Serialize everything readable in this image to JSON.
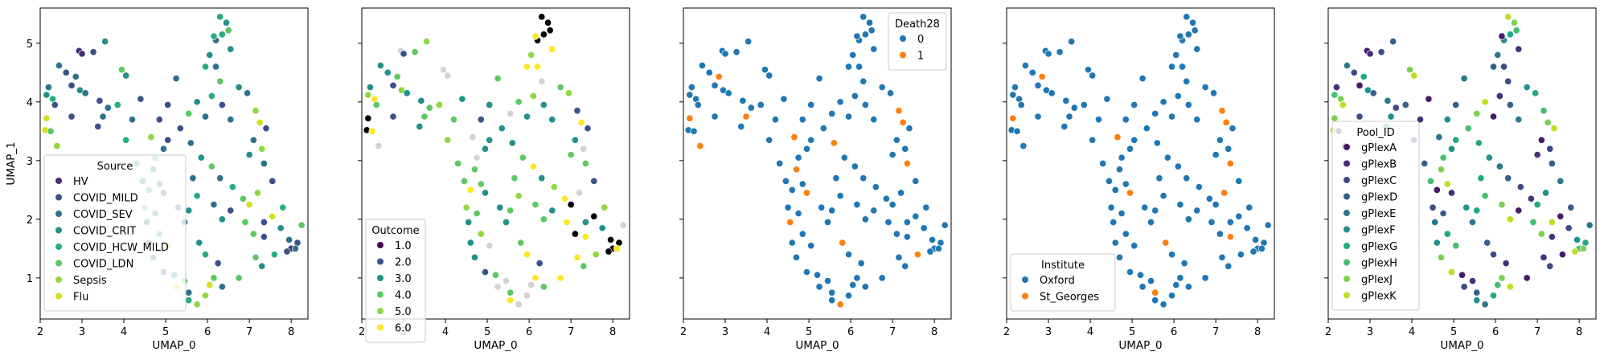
{
  "chart_data": [
    {
      "type": "scatter",
      "xlabel": "UMAP_0",
      "ylabel": "UMAP_1",
      "xlim": [
        2.0,
        8.4
      ],
      "ylim": [
        0.3,
        5.6
      ],
      "xticks": [
        "2",
        "3",
        "4",
        "5",
        "6",
        "7",
        "8"
      ],
      "yticks": [
        "1",
        "2",
        "3",
        "4",
        "5"
      ],
      "legend": {
        "title": "Source",
        "position": "lower-left",
        "entries": [
          "HV",
          "COVID_MILD",
          "COVID_SEV",
          "COVID_CRIT",
          "COVID_HCW_MILD",
          "COVID_LDN",
          "Sepsis",
          "Flu"
        ]
      },
      "colors": [
        "#472c7a",
        "#3b518b",
        "#2c718e",
        "#21908d",
        "#27ad81",
        "#5cc863",
        "#8fd744",
        "#d4e11a"
      ]
    },
    {
      "type": "scatter",
      "xlabel": "UMAP_0",
      "ylabel": "",
      "xlim": [
        2.0,
        8.4
      ],
      "ylim": [
        0.3,
        5.6
      ],
      "xticks": [
        "2",
        "3",
        "4",
        "5",
        "6",
        "7",
        "8"
      ],
      "yticks": [],
      "legend": {
        "title": "Outcome",
        "position": "lower-left",
        "entries": [
          "1.0",
          "2.0",
          "3.0",
          "4.0",
          "5.0",
          "6.0"
        ]
      },
      "colors": [
        "#440154",
        "#3b528b",
        "#21918c",
        "#5ec962",
        "#8fd744",
        "#fde725"
      ],
      "missing_color": "#d3d3d3"
    },
    {
      "type": "scatter",
      "xlabel": "UMAP_0",
      "ylabel": "",
      "xlim": [
        2.0,
        8.4
      ],
      "ylim": [
        0.3,
        5.6
      ],
      "xticks": [
        "2",
        "3",
        "4",
        "5",
        "6",
        "7",
        "8"
      ],
      "yticks": [],
      "legend": {
        "title": "Death28",
        "position": "upper-right",
        "entries": [
          "0",
          "1"
        ]
      },
      "colors": [
        "#1f77b4",
        "#ff7f0e"
      ]
    },
    {
      "type": "scatter",
      "xlabel": "UMAP_0",
      "ylabel": "",
      "xlim": [
        2.0,
        8.4
      ],
      "ylim": [
        0.3,
        5.6
      ],
      "xticks": [
        "2",
        "3",
        "4",
        "5",
        "6",
        "7",
        "8"
      ],
      "yticks": [],
      "legend": {
        "title": "Institute",
        "position": "lower-left",
        "entries": [
          "Oxford",
          "St_Georges"
        ]
      },
      "colors": [
        "#1f77b4",
        "#ff7f0e"
      ]
    },
    {
      "type": "scatter",
      "xlabel": "UMAP_0",
      "ylabel": "",
      "xlim": [
        2.0,
        8.4
      ],
      "ylim": [
        0.3,
        5.6
      ],
      "xticks": [
        "2",
        "3",
        "4",
        "5",
        "6",
        "7",
        "8"
      ],
      "yticks": [],
      "legend": {
        "title": "Pool_ID",
        "position": "center-left",
        "entries": [
          "gPlexA",
          "gPlexB",
          "gPlexC",
          "gPlexD",
          "gPlexE",
          "gPlexF",
          "gPlexG",
          "gPlexH",
          "gPlexJ",
          "gPlexK"
        ]
      },
      "colors": [
        "#481a6c",
        "#472f7d",
        "#3e4a89",
        "#35608d",
        "#2a788e",
        "#21918c",
        "#22a884",
        "#44bf70",
        "#7ad151",
        "#bddf26"
      ]
    }
  ],
  "points": [
    [
      2.93,
      4.87,
      0,
      null,
      0,
      0,
      0
    ],
    [
      3.0,
      4.82,
      0,
      1,
      0,
      0,
      1
    ],
    [
      3.27,
      4.85,
      1,
      3,
      0,
      0,
      2
    ],
    [
      3.55,
      5.03,
      3,
      4,
      0,
      0,
      3
    ],
    [
      2.45,
      4.62,
      2,
      2,
      0,
      0,
      4
    ],
    [
      2.62,
      4.5,
      1,
      2,
      0,
      0,
      2
    ],
    [
      2.75,
      4.28,
      1,
      1,
      0,
      0,
      0
    ],
    [
      2.95,
      4.2,
      3,
      4,
      0,
      0,
      5
    ],
    [
      2.85,
      4.43,
      2,
      3,
      1,
      1,
      6
    ],
    [
      2.2,
      4.25,
      2,
      2,
      0,
      0,
      1
    ],
    [
      2.15,
      4.12,
      3,
      4,
      0,
      0,
      7
    ],
    [
      2.3,
      4.05,
      4,
      5,
      0,
      0,
      8
    ],
    [
      2.35,
      3.95,
      1,
      3,
      0,
      0,
      9
    ],
    [
      2.15,
      3.72,
      7,
      6,
      1,
      1,
      8
    ],
    [
      2.12,
      3.52,
      7,
      6,
      0,
      0,
      9
    ],
    [
      2.25,
      3.5,
      5,
      5,
      0,
      0,
      0
    ],
    [
      2.4,
      3.25,
      6,
      null,
      1,
      0,
      1
    ],
    [
      2.75,
      3.75,
      1,
      1,
      0,
      0,
      2
    ],
    [
      3.08,
      4.15,
      2,
      2,
      0,
      0,
      3
    ],
    [
      3.42,
      4.02,
      1,
      2,
      0,
      0,
      4
    ],
    [
      3.5,
      3.75,
      2,
      3,
      1,
      0,
      5
    ],
    [
      3.38,
      3.58,
      1,
      2,
      0,
      0,
      6
    ],
    [
      3.62,
      3.9,
      2,
      3,
      0,
      0,
      2
    ],
    [
      3.85,
      3.95,
      4,
      4,
      0,
      0,
      3
    ],
    [
      3.95,
      4.55,
      5,
      null,
      0,
      0,
      8
    ],
    [
      4.05,
      4.45,
      3,
      null,
      0,
      0,
      9
    ],
    [
      4.4,
      4.05,
      1,
      2,
      0,
      0,
      0
    ],
    [
      4.2,
      3.7,
      2,
      3,
      0,
      0,
      1
    ],
    [
      4.05,
      3.35,
      4,
      4,
      0,
      0,
      2
    ],
    [
      4.3,
      2.95,
      3,
      3,
      0,
      0,
      3
    ],
    [
      4.65,
      3.4,
      6,
      null,
      1,
      1,
      4
    ],
    [
      4.95,
      3.2,
      2,
      2,
      0,
      0,
      5
    ],
    [
      5.05,
      3.35,
      1,
      2,
      0,
      0,
      6
    ],
    [
      4.75,
      3.05,
      5,
      null,
      0,
      0,
      7
    ],
    [
      4.7,
      2.85,
      3,
      3,
      1,
      0,
      8
    ],
    [
      4.85,
      2.6,
      2,
      3,
      0,
      0,
      9
    ],
    [
      4.6,
      2.5,
      4,
      5,
      0,
      0,
      0
    ],
    [
      4.95,
      2.45,
      1,
      2,
      1,
      1,
      1
    ],
    [
      4.5,
      2.2,
      5,
      4,
      0,
      0,
      2
    ],
    [
      4.75,
      2.1,
      3,
      3,
      0,
      0,
      3
    ],
    [
      4.55,
      1.95,
      2,
      2,
      1,
      0,
      4
    ],
    [
      4.6,
      1.6,
      1,
      2,
      0,
      0,
      5
    ],
    [
      4.85,
      1.75,
      4,
      4,
      0,
      0,
      6
    ],
    [
      5.05,
      1.55,
      6,
      null,
      0,
      0,
      7
    ],
    [
      4.7,
      1.35,
      2,
      2,
      0,
      0,
      8
    ],
    [
      4.95,
      1.1,
      1,
      1,
      0,
      0,
      9
    ],
    [
      5.2,
      1.05,
      3,
      3,
      0,
      0,
      0
    ],
    [
      5.45,
      0.95,
      5,
      null,
      0,
      0,
      1
    ],
    [
      5.25,
      0.85,
      7,
      null,
      0,
      0,
      2
    ],
    [
      5.55,
      0.75,
      2,
      3,
      0,
      1,
      3
    ],
    [
      5.75,
      0.55,
      6,
      null,
      1,
      0,
      4
    ],
    [
      5.55,
      0.62,
      4,
      5,
      0,
      0,
      5
    ],
    [
      5.95,
      0.7,
      6,
      null,
      0,
      0,
      6
    ],
    [
      6.05,
      0.88,
      7,
      null,
      0,
      0,
      7
    ],
    [
      6.15,
      1.0,
      5,
      5,
      0,
      0,
      8
    ],
    [
      6.35,
      0.85,
      2,
      3,
      0,
      0,
      9
    ],
    [
      6.75,
      1.0,
      5,
      5,
      0,
      0,
      0
    ],
    [
      6.25,
      1.25,
      1,
      1,
      0,
      0,
      1
    ],
    [
      5.95,
      1.4,
      4,
      5,
      0,
      0,
      2
    ],
    [
      5.8,
      1.6,
      3,
      3,
      1,
      1,
      3
    ],
    [
      5.45,
      1.95,
      2,
      2,
      0,
      0,
      4
    ],
    [
      5.3,
      2.2,
      1,
      2,
      0,
      0,
      5
    ],
    [
      5.55,
      2.15,
      3,
      3,
      0,
      0,
      6
    ],
    [
      5.75,
      2.4,
      4,
      4,
      0,
      0,
      7
    ],
    [
      6.15,
      2.25,
      2,
      3,
      0,
      0,
      8
    ],
    [
      6.35,
      2.0,
      3,
      3,
      0,
      0,
      9
    ],
    [
      6.55,
      2.15,
      1,
      2,
      0,
      0,
      0
    ],
    [
      6.85,
      2.35,
      5,
      5,
      0,
      0,
      1
    ],
    [
      6.6,
      2.55,
      4,
      4,
      0,
      0,
      2
    ],
    [
      6.3,
      2.7,
      2,
      2,
      0,
      0,
      3
    ],
    [
      6.1,
      2.9,
      5,
      5,
      0,
      0,
      4
    ],
    [
      5.85,
      3.05,
      3,
      3,
      0,
      0,
      5
    ],
    [
      5.6,
      3.3,
      2,
      2,
      1,
      0,
      6
    ],
    [
      5.35,
      3.55,
      1,
      2,
      0,
      0,
      7
    ],
    [
      5.55,
      3.8,
      5,
      null,
      0,
      0,
      8
    ],
    [
      5.75,
      4.0,
      3,
      3,
      0,
      0,
      9
    ],
    [
      5.95,
      3.75,
      2,
      2,
      0,
      0,
      0
    ],
    [
      6.1,
      4.1,
      4,
      4,
      0,
      0,
      1
    ],
    [
      6.3,
      4.35,
      5,
      null,
      0,
      0,
      2
    ],
    [
      5.95,
      4.6,
      4,
      5,
      0,
      0,
      3
    ],
    [
      6.05,
      4.8,
      3,
      4,
      0,
      0,
      4
    ],
    [
      6.2,
      5.05,
      2,
      6,
      0,
      0,
      5
    ],
    [
      6.35,
      5.15,
      4,
      6,
      0,
      0,
      6
    ],
    [
      6.5,
      5.22,
      5,
      6,
      0,
      0,
      7
    ],
    [
      6.45,
      5.35,
      3,
      6,
      0,
      0,
      8
    ],
    [
      6.3,
      5.45,
      4,
      6,
      0,
      0,
      9
    ],
    [
      6.15,
      5.12,
      4,
      5,
      0,
      0,
      0
    ],
    [
      6.55,
      4.9,
      3,
      5,
      0,
      0,
      1
    ],
    [
      6.2,
      4.6,
      2,
      5,
      0,
      0,
      2
    ],
    [
      6.35,
      3.95,
      1,
      2,
      0,
      0,
      3
    ],
    [
      6.55,
      3.7,
      2,
      2,
      0,
      0,
      4
    ],
    [
      6.75,
      4.25,
      3,
      3,
      0,
      0,
      5
    ],
    [
      6.95,
      4.15,
      2,
      4,
      0,
      0,
      6
    ],
    [
      7.15,
      3.85,
      6,
      1,
      1,
      1,
      7
    ],
    [
      7.25,
      3.65,
      7,
      5,
      1,
      1,
      8
    ],
    [
      7.4,
      3.55,
      1,
      1,
      0,
      0,
      9
    ],
    [
      7.1,
      3.35,
      2,
      2,
      0,
      0,
      0
    ],
    [
      7.0,
      3.1,
      3,
      3,
      0,
      0,
      1
    ],
    [
      7.3,
      3.2,
      6,
      null,
      0,
      0,
      2
    ],
    [
      7.35,
      2.95,
      2,
      3,
      1,
      1,
      3
    ],
    [
      7.55,
      2.65,
      1,
      1,
      0,
      0,
      4
    ],
    [
      7.2,
      2.45,
      6,
      null,
      0,
      1,
      5
    ],
    [
      7.0,
      2.25,
      7,
      6,
      0,
      0,
      6
    ],
    [
      6.9,
      1.95,
      5,
      5,
      0,
      0,
      7
    ],
    [
      7.1,
      1.75,
      5,
      6,
      0,
      0,
      8
    ],
    [
      7.35,
      1.95,
      1,
      2,
      0,
      0,
      9
    ],
    [
      7.55,
      2.05,
      7,
      6,
      0,
      0,
      0
    ],
    [
      7.35,
      1.7,
      1,
      5,
      0,
      1,
      1
    ],
    [
      7.75,
      1.85,
      3,
      2,
      0,
      0,
      2
    ],
    [
      7.8,
      2.2,
      4,
      4,
      0,
      0,
      3
    ],
    [
      8.25,
      1.9,
      5,
      null,
      0,
      0,
      4
    ],
    [
      7.95,
      1.65,
      2,
      6,
      0,
      0,
      5
    ],
    [
      8.15,
      1.6,
      1,
      6,
      0,
      0,
      6
    ],
    [
      8.0,
      1.5,
      0,
      6,
      0,
      0,
      7
    ],
    [
      8.1,
      1.5,
      2,
      5,
      0,
      0,
      8
    ],
    [
      7.9,
      1.45,
      1,
      6,
      0,
      0,
      9
    ],
    [
      7.6,
      1.4,
      4,
      4,
      1,
      0,
      0
    ],
    [
      7.15,
      1.35,
      5,
      5,
      0,
      0,
      1
    ],
    [
      7.3,
      1.2,
      3,
      3,
      0,
      0,
      2
    ],
    [
      5.05,
      3.95,
      1,
      2,
      0,
      0,
      3
    ],
    [
      5.25,
      4.4,
      2,
      3,
      0,
      0,
      4
    ],
    [
      4.85,
      3.7,
      1,
      1,
      0,
      0,
      5
    ],
    [
      5.65,
      2.7,
      2,
      3,
      0,
      0,
      6
    ],
    [
      4.45,
      2.65,
      3,
      3,
      0,
      0,
      7
    ]
  ]
}
